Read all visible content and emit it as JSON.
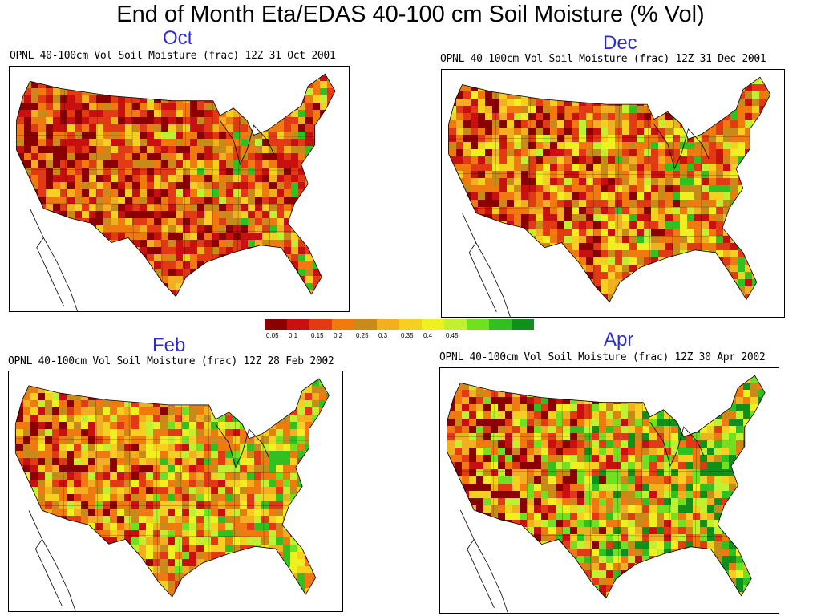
{
  "page_title": "End of Month Eta/EDAS 40-100 cm Soil Moisture (% Vol)",
  "legend": {
    "colors": [
      "#8b0000",
      "#c81010",
      "#e13a14",
      "#f07a10",
      "#c88a18",
      "#f0b020",
      "#f5d020",
      "#f0f020",
      "#c0f030",
      "#70e020",
      "#30c020",
      "#10901a"
    ],
    "ticks": [
      "0.05",
      "0.1",
      "0.15",
      "0.2",
      "0.25",
      "0.3",
      "0.35",
      "0.4",
      "0.45"
    ]
  },
  "maps": [
    {
      "month": "Oct",
      "caption": "OPNL 40-100cm Vol Soil Moisture (frac) 12Z 31 Oct 2001",
      "palette": [
        "#8b0000",
        "#c81010",
        "#e13a14",
        "#f07a10",
        "#c88a18",
        "#f0b020",
        "#f5d020",
        "#c0f030",
        "#30c020"
      ],
      "weights": [
        0.14,
        0.16,
        0.2,
        0.18,
        0.12,
        0.08,
        0.08,
        0.03,
        0.01
      ]
    },
    {
      "month": "Dec",
      "caption": "OPNL 40-100cm Vol Soil Moisture (frac) 12Z 31 Dec 2001",
      "palette": [
        "#8b0000",
        "#c81010",
        "#e13a14",
        "#f07a10",
        "#c88a18",
        "#f0b020",
        "#f5d020",
        "#f0f020",
        "#c0f030",
        "#30c020"
      ],
      "weights": [
        0.08,
        0.12,
        0.16,
        0.18,
        0.1,
        0.1,
        0.1,
        0.08,
        0.06,
        0.02
      ]
    },
    {
      "month": "Feb",
      "caption": "OPNL 40-100cm Vol Soil Moisture (frac) 12Z 28 Feb 2002",
      "palette": [
        "#8b0000",
        "#c81010",
        "#e13a14",
        "#f07a10",
        "#c88a18",
        "#f0b020",
        "#f5d020",
        "#f0f020",
        "#c0f030",
        "#70e020",
        "#30c020"
      ],
      "weights": [
        0.04,
        0.08,
        0.12,
        0.2,
        0.12,
        0.1,
        0.1,
        0.08,
        0.08,
        0.06,
        0.02
      ]
    },
    {
      "month": "Apr",
      "caption": "OPNL 40-100cm Vol Soil Moisture (frac) 12Z 30 Apr 2002",
      "palette": [
        "#8b0000",
        "#c81010",
        "#e13a14",
        "#f07a10",
        "#c88a18",
        "#f0b020",
        "#f5d020",
        "#f0f020",
        "#c0f030",
        "#70e020",
        "#30c020",
        "#10901a"
      ],
      "weights": [
        0.06,
        0.08,
        0.1,
        0.12,
        0.08,
        0.08,
        0.08,
        0.08,
        0.1,
        0.1,
        0.07,
        0.05
      ]
    }
  ]
}
